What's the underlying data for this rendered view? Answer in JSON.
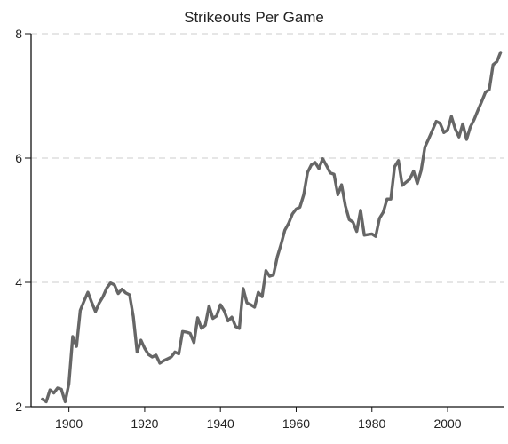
{
  "chart_data": {
    "type": "line",
    "title": "Strikeouts Per Game",
    "xlabel": "",
    "ylabel": "",
    "xlim": [
      1890,
      2015
    ],
    "ylim": [
      2,
      8
    ],
    "x_ticks": [
      1900,
      1920,
      1940,
      1960,
      1980,
      2000
    ],
    "y_ticks": [
      2,
      4,
      6,
      8
    ],
    "grid": "horizontal dashed",
    "legend": "none",
    "colors": {
      "line": "#666666",
      "grid": "#cccccc",
      "axis": "#111111"
    },
    "series": [
      {
        "x": [
          1893,
          1894,
          1895,
          1896,
          1897,
          1898,
          1899,
          1900,
          1901,
          1902,
          1903,
          1904,
          1905,
          1906,
          1907,
          1908,
          1909,
          1910,
          1911,
          1912,
          1913,
          1914,
          1915,
          1916,
          1917,
          1918,
          1919,
          1920,
          1921,
          1922,
          1923,
          1924,
          1925,
          1926,
          1927,
          1928,
          1929,
          1930,
          1931,
          1932,
          1933,
          1934,
          1935,
          1936,
          1937,
          1938,
          1939,
          1940,
          1941,
          1942,
          1943,
          1944,
          1945,
          1946,
          1947,
          1948,
          1949,
          1950,
          1951,
          1952,
          1953,
          1954,
          1955,
          1956,
          1957,
          1958,
          1959,
          1960,
          1961,
          1962,
          1963,
          1964,
          1965,
          1966,
          1967,
          1968,
          1969,
          1970,
          1971,
          1972,
          1973,
          1974,
          1975,
          1976,
          1977,
          1978,
          1979,
          1980,
          1981,
          1982,
          1983,
          1984,
          1985,
          1986,
          1987,
          1988,
          1989,
          1990,
          1991,
          1992,
          1993,
          1994,
          1995,
          1996,
          1997,
          1998,
          1999,
          2000,
          2001,
          2002,
          2003,
          2004,
          2005,
          2006,
          2007,
          2008,
          2009,
          2010,
          2011,
          2012,
          2013,
          2014
        ],
        "values": [
          2.12,
          2.08,
          2.27,
          2.22,
          2.3,
          2.28,
          2.08,
          2.37,
          3.13,
          2.97,
          3.55,
          3.7,
          3.84,
          3.68,
          3.53,
          3.67,
          3.77,
          3.91,
          3.99,
          3.96,
          3.82,
          3.89,
          3.83,
          3.8,
          3.45,
          2.88,
          3.07,
          2.94,
          2.84,
          2.8,
          2.83,
          2.7,
          2.74,
          2.77,
          2.8,
          2.88,
          2.85,
          3.21,
          3.2,
          3.18,
          3.03,
          3.43,
          3.26,
          3.31,
          3.62,
          3.42,
          3.46,
          3.64,
          3.54,
          3.38,
          3.44,
          3.29,
          3.26,
          3.9,
          3.67,
          3.64,
          3.6,
          3.84,
          3.77,
          4.19,
          4.1,
          4.12,
          4.41,
          4.61,
          4.84,
          4.95,
          5.1,
          5.18,
          5.21,
          5.41,
          5.77,
          5.89,
          5.93,
          5.83,
          5.99,
          5.88,
          5.76,
          5.74,
          5.41,
          5.57,
          5.23,
          5.01,
          4.97,
          4.82,
          5.16,
          4.76,
          4.77,
          4.78,
          4.74,
          5.03,
          5.13,
          5.34,
          5.34,
          5.86,
          5.96,
          5.56,
          5.61,
          5.66,
          5.79,
          5.59,
          5.8,
          6.18,
          6.31,
          6.45,
          6.59,
          6.56,
          6.41,
          6.45,
          6.67,
          6.47,
          6.34,
          6.55,
          6.3,
          6.5,
          6.62,
          6.77,
          6.91,
          7.06,
          7.1,
          7.5,
          7.55,
          7.7
        ]
      }
    ]
  }
}
